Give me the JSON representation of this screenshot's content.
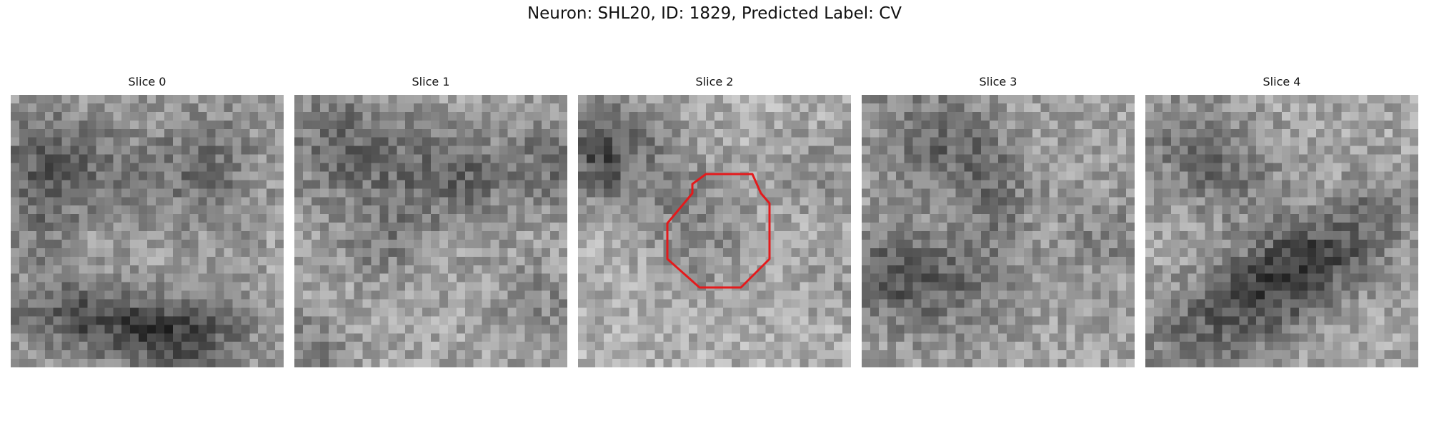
{
  "figure": {
    "suptitle": "Neuron: SHL20, ID: 1829, Predicted Label: CV"
  },
  "colors": {
    "background": "#ffffff",
    "roi_outline": "#e41a1c"
  },
  "colormap": "grayscale",
  "slices": [
    {
      "title": "Slice 0",
      "roi": false
    },
    {
      "title": "Slice 1",
      "roi": false
    },
    {
      "title": "Slice 2",
      "roi": true
    },
    {
      "title": "Slice 3",
      "roi": false
    },
    {
      "title": "Slice 4",
      "roi": false
    }
  ]
}
